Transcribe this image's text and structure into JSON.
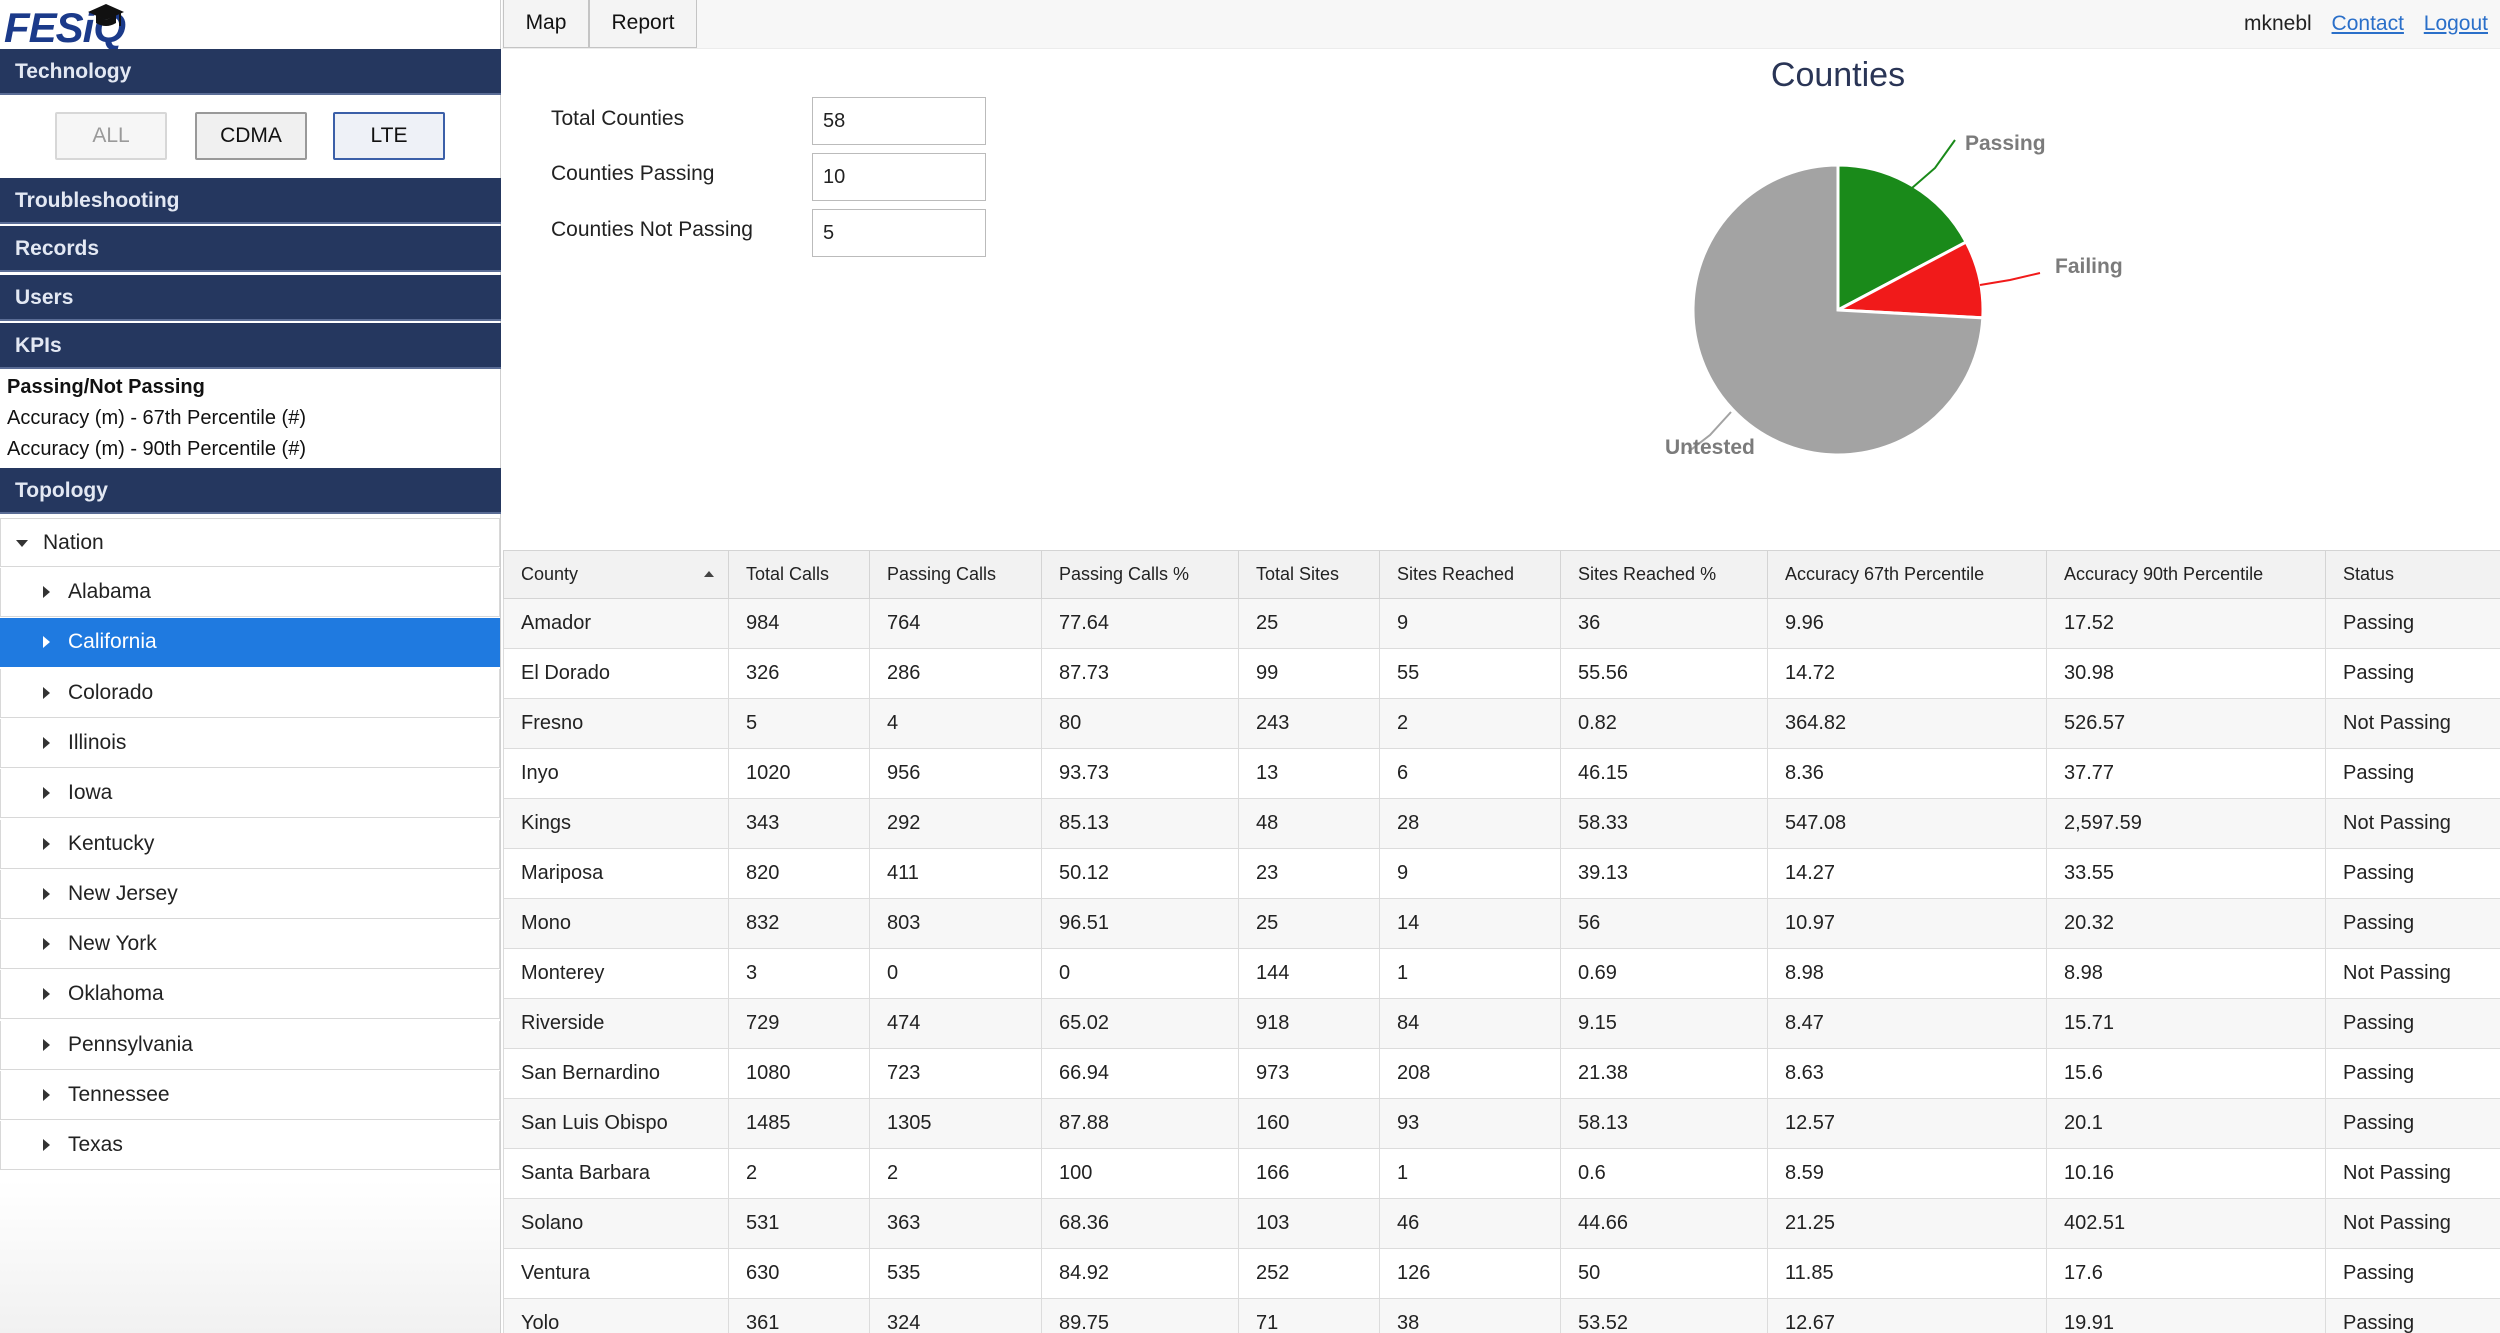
{
  "brand": {
    "logo_text": "FESiQ"
  },
  "sidebar": {
    "technology_header": "Technology",
    "tech_buttons": [
      "ALL",
      "CDMA",
      "LTE"
    ],
    "sections": [
      "Troubleshooting",
      "Records",
      "Users",
      "KPIs"
    ],
    "kpis": [
      "Passing/Not Passing",
      "Accuracy (m) - 67th Percentile (#)",
      "Accuracy (m) - 90th Percentile (#)"
    ],
    "topology_header": "Topology",
    "tree_root": "Nation",
    "tree_items": [
      "Alabama",
      "California",
      "Colorado",
      "Illinois",
      "Iowa",
      "Kentucky",
      "New Jersey",
      "New York",
      "Oklahoma",
      "Pennsylvania",
      "Tennessee",
      "Texas"
    ],
    "selected": "California"
  },
  "topbar": {
    "tabs": [
      "Map",
      "Report"
    ],
    "username": "mknebl",
    "contact": "Contact",
    "logout": "Logout"
  },
  "summary": {
    "total_label": "Total Counties",
    "total_value": "58",
    "passing_label": "Counties Passing",
    "passing_value": "10",
    "not_passing_label": "Counties Not Passing",
    "not_passing_value": "5"
  },
  "chart_data": {
    "type": "pie",
    "title": "Counties",
    "labels": [
      "Passing",
      "Failing",
      "Untested"
    ],
    "values": [
      10,
      5,
      43
    ],
    "colors": [
      "#1a8a1a",
      "#f11a1a",
      "#a3a3a3"
    ]
  },
  "table": {
    "columns": [
      "County",
      "Total Calls",
      "Passing Calls",
      "Passing Calls %",
      "Total Sites",
      "Sites Reached",
      "Sites Reached %",
      "Accuracy 67th Percentile",
      "Accuracy 90th Percentile",
      "Status"
    ],
    "rows": [
      [
        "Amador",
        "984",
        "764",
        "77.64",
        "25",
        "9",
        "36",
        "9.96",
        "17.52",
        "Passing"
      ],
      [
        "El Dorado",
        "326",
        "286",
        "87.73",
        "99",
        "55",
        "55.56",
        "14.72",
        "30.98",
        "Passing"
      ],
      [
        "Fresno",
        "5",
        "4",
        "80",
        "243",
        "2",
        "0.82",
        "364.82",
        "526.57",
        "Not Passing"
      ],
      [
        "Inyo",
        "1020",
        "956",
        "93.73",
        "13",
        "6",
        "46.15",
        "8.36",
        "37.77",
        "Passing"
      ],
      [
        "Kings",
        "343",
        "292",
        "85.13",
        "48",
        "28",
        "58.33",
        "547.08",
        "2,597.59",
        "Not Passing"
      ],
      [
        "Mariposa",
        "820",
        "411",
        "50.12",
        "23",
        "9",
        "39.13",
        "14.27",
        "33.55",
        "Passing"
      ],
      [
        "Mono",
        "832",
        "803",
        "96.51",
        "25",
        "14",
        "56",
        "10.97",
        "20.32",
        "Passing"
      ],
      [
        "Monterey",
        "3",
        "0",
        "0",
        "144",
        "1",
        "0.69",
        "8.98",
        "8.98",
        "Not Passing"
      ],
      [
        "Riverside",
        "729",
        "474",
        "65.02",
        "918",
        "84",
        "9.15",
        "8.47",
        "15.71",
        "Passing"
      ],
      [
        "San Bernardino",
        "1080",
        "723",
        "66.94",
        "973",
        "208",
        "21.38",
        "8.63",
        "15.6",
        "Passing"
      ],
      [
        "San Luis Obispo",
        "1485",
        "1305",
        "87.88",
        "160",
        "93",
        "58.13",
        "12.57",
        "20.1",
        "Passing"
      ],
      [
        "Santa Barbara",
        "2",
        "2",
        "100",
        "166",
        "1",
        "0.6",
        "8.59",
        "10.16",
        "Not Passing"
      ],
      [
        "Solano",
        "531",
        "363",
        "68.36",
        "103",
        "46",
        "44.66",
        "21.25",
        "402.51",
        "Not Passing"
      ],
      [
        "Ventura",
        "630",
        "535",
        "84.92",
        "252",
        "126",
        "50",
        "11.85",
        "17.6",
        "Passing"
      ],
      [
        "Yolo",
        "361",
        "324",
        "89.75",
        "71",
        "38",
        "53.52",
        "12.67",
        "19.91",
        "Passing"
      ]
    ]
  }
}
